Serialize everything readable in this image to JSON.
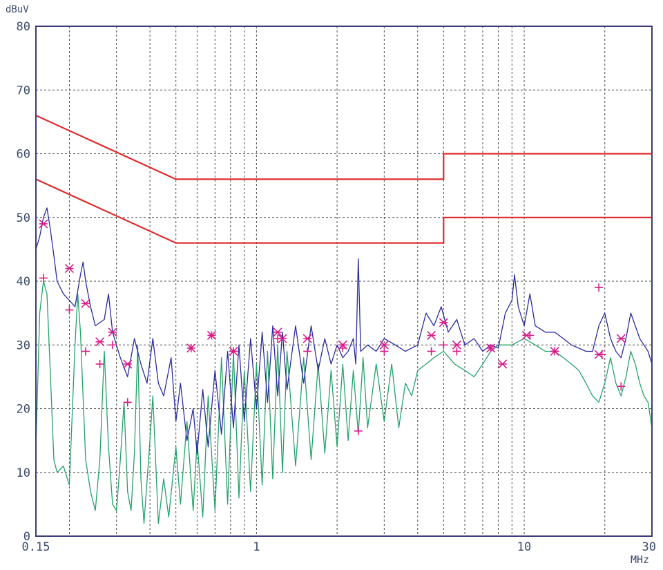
{
  "chart_data": {
    "type": "line",
    "title": "",
    "ylabel": "dBuV",
    "xlabel": "MHz",
    "x_scale": "log",
    "xlim": [
      0.15,
      30
    ],
    "ylim": [
      0,
      80
    ],
    "grid": true,
    "x_tick_labels": [
      {
        "value": 0.15,
        "label": "0.15"
      },
      {
        "value": 1,
        "label": "1"
      },
      {
        "value": 10,
        "label": "10"
      },
      {
        "value": 30,
        "label": "30"
      }
    ],
    "y_tick_labels": [
      {
        "value": 0,
        "label": "0"
      },
      {
        "value": 10,
        "label": "10"
      },
      {
        "value": 20,
        "label": "20"
      },
      {
        "value": 30,
        "label": "30"
      },
      {
        "value": 40,
        "label": "40"
      },
      {
        "value": 50,
        "label": "50"
      },
      {
        "value": 60,
        "label": "60"
      },
      {
        "value": 70,
        "label": "70"
      },
      {
        "value": 80,
        "label": "80"
      }
    ],
    "colors": {
      "grid": "#4a4a4a",
      "frame": "#3a3a7a",
      "limit": "#e02a2a",
      "peak": "#2a2aa0",
      "average": "#22a26a",
      "marker": "#d81b8a"
    },
    "limit_lines": [
      {
        "points": [
          [
            0.15,
            66
          ],
          [
            0.5,
            56
          ],
          [
            5,
            56
          ],
          [
            5,
            60
          ],
          [
            30,
            60
          ]
        ]
      },
      {
        "points": [
          [
            0.15,
            56
          ],
          [
            0.5,
            46
          ],
          [
            5,
            46
          ],
          [
            5,
            50
          ],
          [
            30,
            50
          ]
        ]
      }
    ],
    "series": [
      {
        "key": "peak",
        "points": [
          [
            0.15,
            45
          ],
          [
            0.155,
            47
          ],
          [
            0.16,
            50
          ],
          [
            0.165,
            51.5
          ],
          [
            0.17,
            48
          ],
          [
            0.175,
            44
          ],
          [
            0.18,
            40
          ],
          [
            0.19,
            38
          ],
          [
            0.2,
            37
          ],
          [
            0.21,
            36
          ],
          [
            0.22,
            41
          ],
          [
            0.225,
            43
          ],
          [
            0.23,
            40
          ],
          [
            0.24,
            36
          ],
          [
            0.25,
            33
          ],
          [
            0.27,
            34
          ],
          [
            0.28,
            38
          ],
          [
            0.29,
            32
          ],
          [
            0.31,
            28
          ],
          [
            0.33,
            25
          ],
          [
            0.35,
            31
          ],
          [
            0.37,
            27
          ],
          [
            0.39,
            24
          ],
          [
            0.41,
            31
          ],
          [
            0.43,
            24
          ],
          [
            0.45,
            22
          ],
          [
            0.48,
            28
          ],
          [
            0.5,
            18
          ],
          [
            0.52,
            24
          ],
          [
            0.55,
            15
          ],
          [
            0.58,
            20
          ],
          [
            0.6,
            13
          ],
          [
            0.63,
            23
          ],
          [
            0.66,
            14
          ],
          [
            0.7,
            26
          ],
          [
            0.74,
            16
          ],
          [
            0.78,
            29
          ],
          [
            0.82,
            17
          ],
          [
            0.86,
            30
          ],
          [
            0.9,
            18
          ],
          [
            0.95,
            31
          ],
          [
            1.0,
            20
          ],
          [
            1.05,
            32
          ],
          [
            1.1,
            21
          ],
          [
            1.15,
            33
          ],
          [
            1.2,
            22
          ],
          [
            1.25,
            32
          ],
          [
            1.3,
            23
          ],
          [
            1.4,
            33
          ],
          [
            1.5,
            24
          ],
          [
            1.6,
            33
          ],
          [
            1.7,
            26
          ],
          [
            1.8,
            31
          ],
          [
            1.9,
            27
          ],
          [
            2.0,
            30
          ],
          [
            2.1,
            28
          ],
          [
            2.2,
            29
          ],
          [
            2.3,
            31
          ],
          [
            2.35,
            27
          ],
          [
            2.4,
            43.5
          ],
          [
            2.45,
            29
          ],
          [
            2.6,
            30
          ],
          [
            2.8,
            29
          ],
          [
            3.0,
            31
          ],
          [
            3.3,
            30
          ],
          [
            3.6,
            29
          ],
          [
            4.0,
            30
          ],
          [
            4.3,
            35
          ],
          [
            4.6,
            33
          ],
          [
            4.9,
            36
          ],
          [
            5.2,
            32
          ],
          [
            5.6,
            34
          ],
          [
            6.0,
            30
          ],
          [
            6.5,
            31
          ],
          [
            7.0,
            29
          ],
          [
            7.5,
            30
          ],
          [
            8.0,
            29.5
          ],
          [
            8.5,
            35
          ],
          [
            9.0,
            37
          ],
          [
            9.2,
            41
          ],
          [
            9.5,
            36
          ],
          [
            10,
            33
          ],
          [
            10.5,
            38
          ],
          [
            11,
            33
          ],
          [
            12,
            32
          ],
          [
            13,
            32
          ],
          [
            14,
            31
          ],
          [
            15,
            30
          ],
          [
            16,
            29.5
          ],
          [
            17,
            29
          ],
          [
            18,
            29
          ],
          [
            19,
            33
          ],
          [
            20,
            35
          ],
          [
            21,
            31
          ],
          [
            22,
            29
          ],
          [
            23,
            28
          ],
          [
            24,
            31
          ],
          [
            25,
            35
          ],
          [
            26,
            33
          ],
          [
            27,
            31
          ],
          [
            28,
            30
          ],
          [
            29,
            29
          ],
          [
            30,
            27
          ]
        ]
      },
      {
        "key": "average",
        "points": [
          [
            0.15,
            14
          ],
          [
            0.155,
            35
          ],
          [
            0.16,
            40
          ],
          [
            0.165,
            38
          ],
          [
            0.17,
            25
          ],
          [
            0.175,
            12
          ],
          [
            0.18,
            10
          ],
          [
            0.19,
            11
          ],
          [
            0.2,
            8
          ],
          [
            0.21,
            30
          ],
          [
            0.215,
            38
          ],
          [
            0.22,
            32
          ],
          [
            0.23,
            12
          ],
          [
            0.24,
            7
          ],
          [
            0.25,
            4
          ],
          [
            0.26,
            12
          ],
          [
            0.27,
            29
          ],
          [
            0.28,
            14
          ],
          [
            0.29,
            5
          ],
          [
            0.3,
            4
          ],
          [
            0.31,
            12
          ],
          [
            0.32,
            21
          ],
          [
            0.33,
            7
          ],
          [
            0.34,
            4
          ],
          [
            0.35,
            13
          ],
          [
            0.36,
            30
          ],
          [
            0.37,
            9
          ],
          [
            0.38,
            2
          ],
          [
            0.4,
            15
          ],
          [
            0.41,
            22
          ],
          [
            0.43,
            2
          ],
          [
            0.45,
            9
          ],
          [
            0.47,
            3
          ],
          [
            0.5,
            14
          ],
          [
            0.52,
            5
          ],
          [
            0.55,
            18
          ],
          [
            0.58,
            4
          ],
          [
            0.6,
            15
          ],
          [
            0.63,
            3
          ],
          [
            0.66,
            22
          ],
          [
            0.7,
            4
          ],
          [
            0.74,
            28
          ],
          [
            0.78,
            5
          ],
          [
            0.82,
            29
          ],
          [
            0.86,
            6
          ],
          [
            0.9,
            26
          ],
          [
            0.95,
            7
          ],
          [
            1.0,
            27
          ],
          [
            1.05,
            8
          ],
          [
            1.1,
            29
          ],
          [
            1.15,
            9
          ],
          [
            1.2,
            30
          ],
          [
            1.25,
            10
          ],
          [
            1.3,
            29
          ],
          [
            1.4,
            11
          ],
          [
            1.5,
            28
          ],
          [
            1.6,
            12
          ],
          [
            1.7,
            27
          ],
          [
            1.8,
            13
          ],
          [
            1.9,
            26
          ],
          [
            2.0,
            14
          ],
          [
            2.1,
            27
          ],
          [
            2.2,
            15
          ],
          [
            2.3,
            26
          ],
          [
            2.4,
            16
          ],
          [
            2.5,
            28
          ],
          [
            2.6,
            17
          ],
          [
            2.8,
            27
          ],
          [
            3.0,
            18
          ],
          [
            3.2,
            27
          ],
          [
            3.4,
            17
          ],
          [
            3.6,
            24
          ],
          [
            3.8,
            22
          ],
          [
            4.0,
            26
          ],
          [
            4.3,
            27
          ],
          [
            4.6,
            28
          ],
          [
            5.0,
            29
          ],
          [
            5.5,
            27
          ],
          [
            6.0,
            26
          ],
          [
            6.5,
            25
          ],
          [
            7.0,
            27
          ],
          [
            7.5,
            29
          ],
          [
            8.0,
            30
          ],
          [
            9.0,
            30
          ],
          [
            10,
            31
          ],
          [
            11,
            30
          ],
          [
            12,
            29
          ],
          [
            13,
            29
          ],
          [
            14,
            28
          ],
          [
            15,
            27
          ],
          [
            16,
            26
          ],
          [
            17,
            24
          ],
          [
            18,
            22
          ],
          [
            19,
            21
          ],
          [
            20,
            24
          ],
          [
            21,
            28
          ],
          [
            22,
            24
          ],
          [
            23,
            22
          ],
          [
            24,
            25
          ],
          [
            25,
            29
          ],
          [
            26,
            27
          ],
          [
            27,
            24
          ],
          [
            28,
            22
          ],
          [
            29,
            21
          ],
          [
            30,
            17
          ]
        ]
      }
    ],
    "markers_plus": [
      [
        0.16,
        40.5
      ],
      [
        0.2,
        35.5
      ],
      [
        0.23,
        29
      ],
      [
        0.26,
        27
      ],
      [
        0.29,
        30
      ],
      [
        0.33,
        21
      ],
      [
        0.57,
        29.5
      ],
      [
        0.68,
        31.5
      ],
      [
        0.82,
        29
      ],
      [
        1.2,
        31
      ],
      [
        1.55,
        29
      ],
      [
        2.1,
        29.5
      ],
      [
        2.4,
        16.5
      ],
      [
        3.0,
        29
      ],
      [
        4.5,
        29
      ],
      [
        5.0,
        30
      ],
      [
        5.6,
        29
      ],
      [
        7.5,
        29.5
      ],
      [
        10.5,
        31.5
      ],
      [
        13,
        29
      ],
      [
        19,
        39
      ],
      [
        19.5,
        28.5
      ],
      [
        23,
        23.5
      ]
    ],
    "markers_star": [
      [
        0.16,
        49
      ],
      [
        0.2,
        42
      ],
      [
        0.23,
        36.5
      ],
      [
        0.26,
        30.5
      ],
      [
        0.29,
        32
      ],
      [
        0.33,
        27
      ],
      [
        0.57,
        29.5
      ],
      [
        0.68,
        31.5
      ],
      [
        0.82,
        29
      ],
      [
        1.2,
        32
      ],
      [
        1.25,
        31
      ],
      [
        1.55,
        31
      ],
      [
        2.1,
        30
      ],
      [
        3.0,
        30
      ],
      [
        4.5,
        31.5
      ],
      [
        5.0,
        33.5
      ],
      [
        5.6,
        30
      ],
      [
        7.5,
        29.5
      ],
      [
        8.3,
        27
      ],
      [
        10.2,
        31.5
      ],
      [
        13,
        29
      ],
      [
        19,
        28.5
      ],
      [
        23,
        31
      ]
    ]
  }
}
